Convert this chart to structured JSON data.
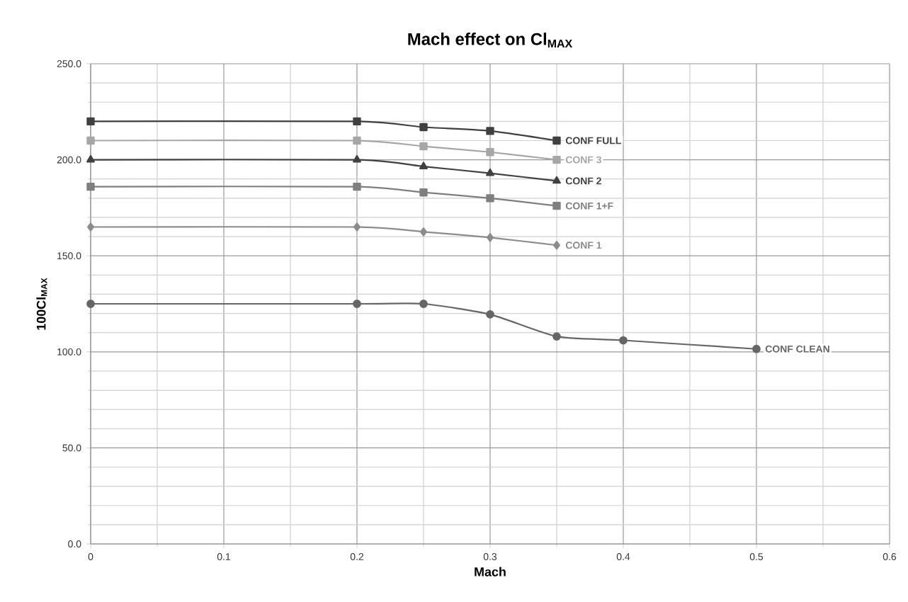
{
  "chart_data": {
    "type": "line",
    "title": "Mach effect on Cl$_{MAX}$",
    "xlabel": "Mach",
    "ylabel": "100Cl$_{MAX}$",
    "xlim": [
      0,
      0.6
    ],
    "ylim": [
      0,
      250
    ],
    "xticks": [
      0,
      {
        "value": 0.05,
        "label": null
      },
      0.1,
      {
        "value": 0.15,
        "label": null
      },
      0.2,
      {
        "value": 0.25,
        "label": null
      },
      0.3,
      {
        "value": 0.35,
        "label": null
      },
      0.4,
      {
        "value": 0.45,
        "label": null
      },
      0.5,
      {
        "value": 0.55,
        "label": null
      },
      0.6
    ],
    "yticks": [
      {
        "value": 0,
        "label": "0.0"
      },
      {
        "value": 10,
        "label": null
      },
      {
        "value": 20,
        "label": null
      },
      {
        "value": 30,
        "label": null
      },
      {
        "value": 40,
        "label": null
      },
      {
        "value": 50,
        "label": "50.0"
      },
      {
        "value": 60,
        "label": null
      },
      {
        "value": 70,
        "label": null
      },
      {
        "value": 80,
        "label": null
      },
      {
        "value": 90,
        "label": null
      },
      {
        "value": 100,
        "label": "100.0"
      },
      {
        "value": 110,
        "label": null
      },
      {
        "value": 120,
        "label": null
      },
      {
        "value": 130,
        "label": null
      },
      {
        "value": 140,
        "label": null
      },
      {
        "value": 150,
        "label": "150.0"
      },
      {
        "value": 160,
        "label": null
      },
      {
        "value": 170,
        "label": null
      },
      {
        "value": 180,
        "label": null
      },
      {
        "value": 190,
        "label": null
      },
      {
        "value": 200,
        "label": "200.0"
      },
      {
        "value": 210,
        "label": null
      },
      {
        "value": 220,
        "label": null
      },
      {
        "value": 230,
        "label": null
      },
      {
        "value": 240,
        "label": null
      },
      {
        "value": 250,
        "label": "250.0"
      }
    ],
    "grid": true,
    "line_style": "solid",
    "series": [
      {
        "name": "CONF FULL",
        "color": "#404040",
        "marker": "square",
        "x": [
          0,
          0.2,
          0.25,
          0.3,
          0.35
        ],
        "values": [
          220,
          220,
          217,
          215,
          210
        ]
      },
      {
        "name": "CONF 3",
        "color": "#a6a6a6",
        "marker": "square",
        "x": [
          0,
          0.2,
          0.25,
          0.3,
          0.35
        ],
        "values": [
          210,
          210,
          207,
          204,
          200
        ]
      },
      {
        "name": "CONF 2",
        "color": "#404040",
        "marker": "triangle",
        "x": [
          0,
          0.2,
          0.25,
          0.3,
          0.35
        ],
        "values": [
          200,
          200,
          196.5,
          193,
          189
        ]
      },
      {
        "name": "CONF 1+F",
        "color": "#7f7f7f",
        "marker": "square",
        "x": [
          0,
          0.2,
          0.25,
          0.3,
          0.35
        ],
        "values": [
          186,
          186,
          183,
          180,
          176
        ]
      },
      {
        "name": "CONF 1",
        "color": "#8c8c8c",
        "marker": "diamond",
        "x": [
          0,
          0.2,
          0.25,
          0.3,
          0.35
        ],
        "values": [
          165,
          165,
          162.5,
          159.5,
          155.5
        ]
      },
      {
        "name": "CONF CLEAN",
        "color": "#666666",
        "marker": "circle",
        "x": [
          0,
          0.2,
          0.25,
          0.3,
          0.35,
          0.4,
          0.5
        ],
        "values": [
          125,
          125,
          125,
          119.5,
          108,
          106,
          101.5
        ]
      }
    ]
  }
}
